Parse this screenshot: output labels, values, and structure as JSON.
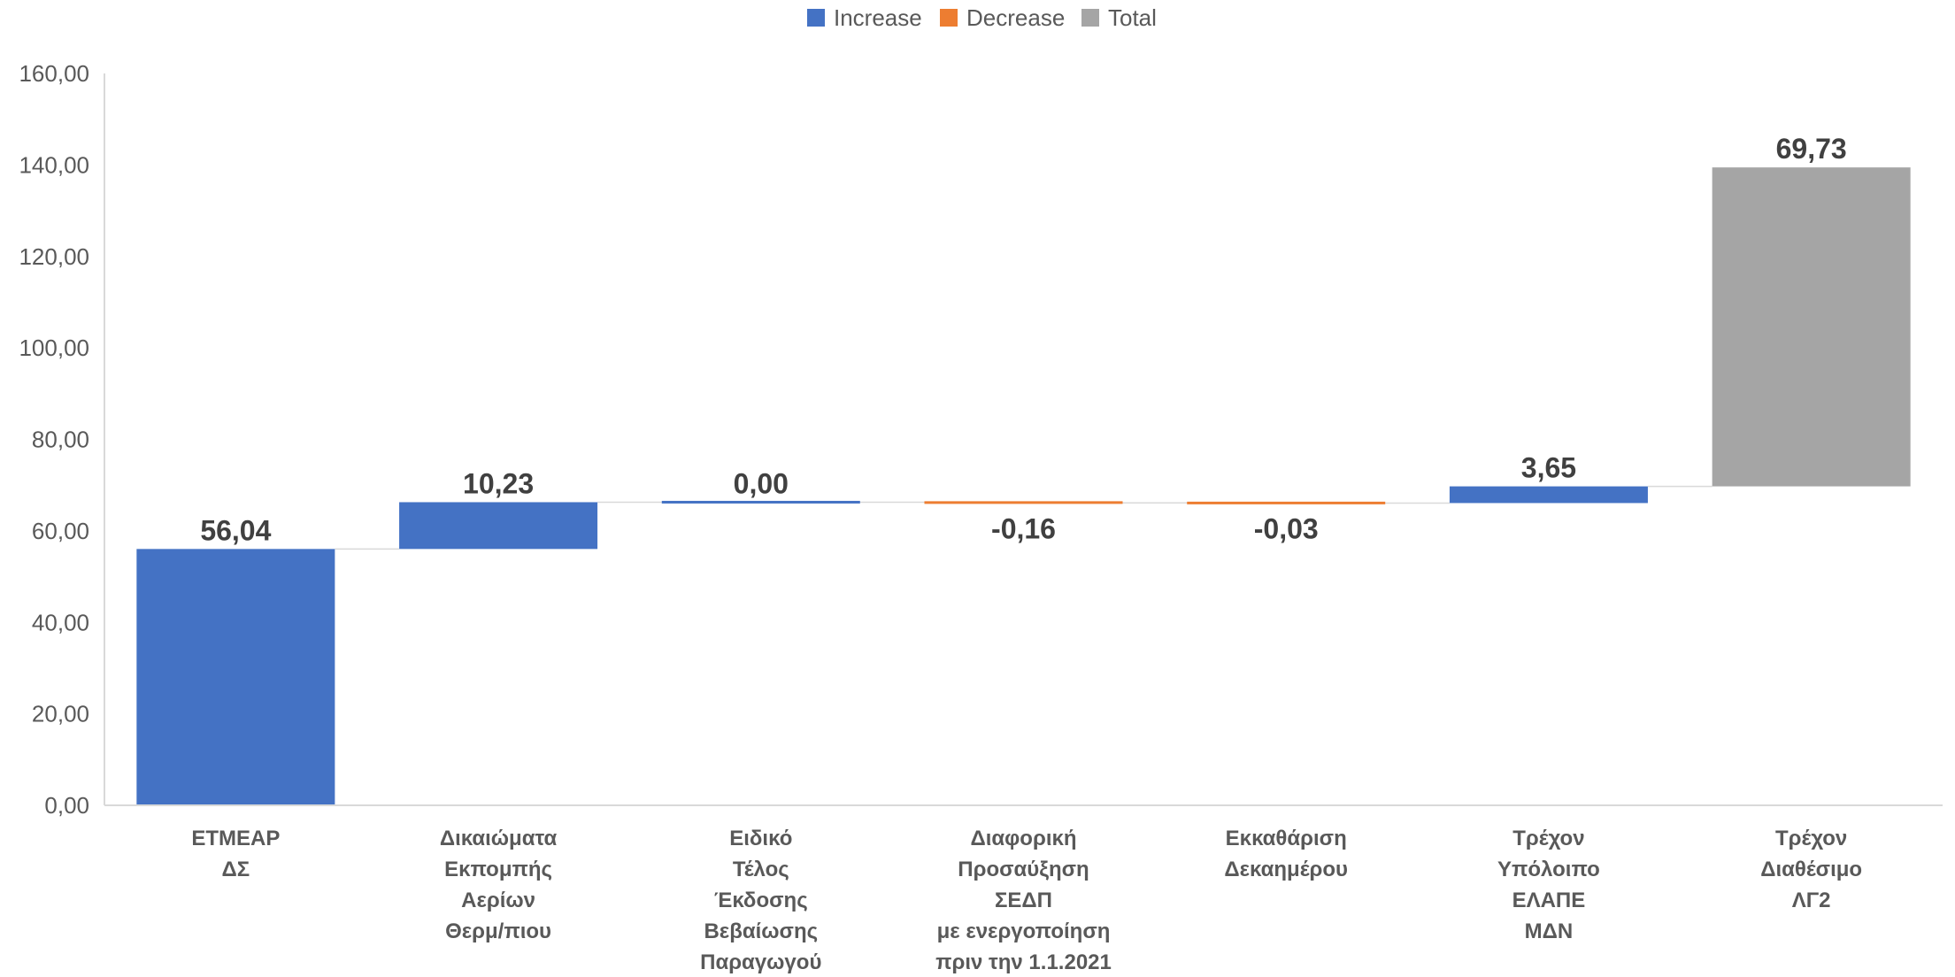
{
  "chart_data": {
    "type": "bar",
    "subtype": "waterfall",
    "title": "",
    "xlabel": "",
    "ylabel": "",
    "ylim": [
      0,
      160
    ],
    "y_ticks": [
      "0,00",
      "20,00",
      "40,00",
      "60,00",
      "80,00",
      "100,00",
      "120,00",
      "140,00",
      "160,00"
    ],
    "grid": false,
    "legend_position": "top",
    "legend": [
      {
        "name": "Increase",
        "color": "#4472C4"
      },
      {
        "name": "Decrease",
        "color": "#ED7D31"
      },
      {
        "name": "Total",
        "color": "#A5A5A5"
      }
    ],
    "categories": [
      [
        "ΕΤΜΕΑΡ",
        "ΔΣ"
      ],
      [
        "Δικαιώματα",
        "Εκπομπής",
        "Αερίων",
        "Θερμ/πιου"
      ],
      [
        "Ειδικό",
        "Τέλος",
        "Έκδοσης",
        "Βεβαίωσης",
        "Παραγωγού"
      ],
      [
        "Διαφορική",
        "Προσαύξηση",
        "ΣΕΔΠ",
        "με ενεργοποίηση",
        "πριν την 1.1.2021"
      ],
      [
        "Εκκαθάριση",
        "Δεκαημέρου"
      ],
      [
        "Τρέχον",
        "Υπόλοιπο",
        "ΕΛΑΠΕ",
        "ΜΔΝ"
      ],
      [
        "Τρέχον",
        "Διαθέσιμο",
        "ΛΓ2"
      ]
    ],
    "bars": [
      {
        "kind": "increase",
        "base": 0,
        "top": 56.04,
        "label": "56,04"
      },
      {
        "kind": "increase",
        "base": 56.04,
        "top": 66.27,
        "label": "10,23"
      },
      {
        "kind": "increase",
        "base": 66.27,
        "top": 66.27,
        "label": "0,00"
      },
      {
        "kind": "decrease",
        "base": 66.27,
        "top": 66.11,
        "label": "-0,16"
      },
      {
        "kind": "decrease",
        "base": 66.11,
        "top": 66.08,
        "label": "-0,03"
      },
      {
        "kind": "increase",
        "base": 66.08,
        "top": 69.73,
        "label": "3,65"
      },
      {
        "kind": "total",
        "base": 69.73,
        "top": 139.46,
        "label": "69,73"
      }
    ]
  }
}
